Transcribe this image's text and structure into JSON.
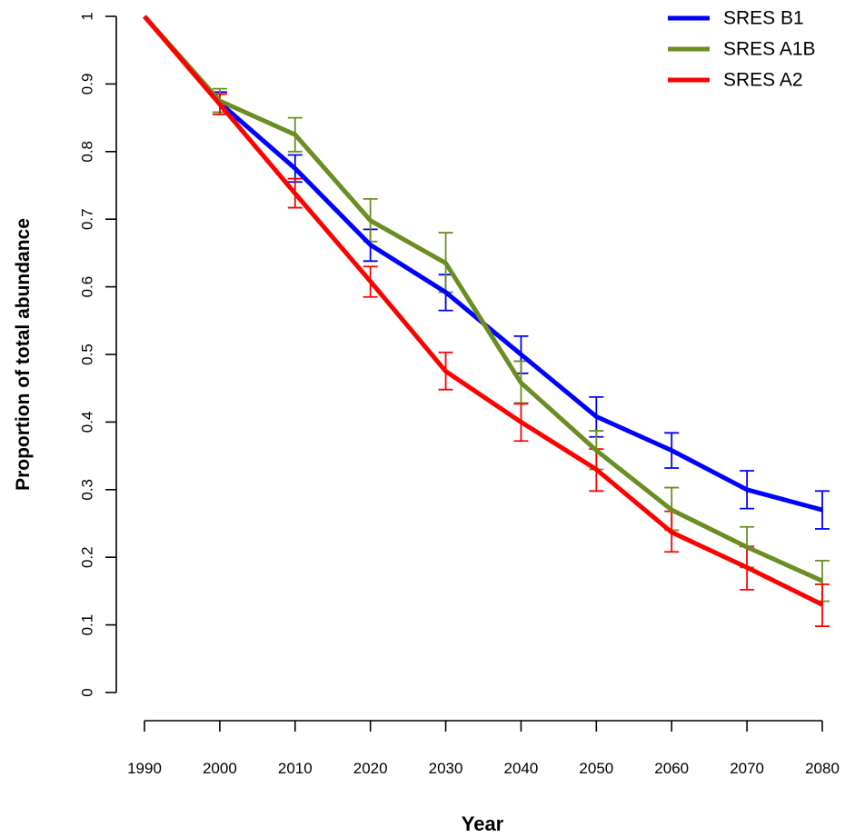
{
  "chart_data": {
    "type": "line",
    "title": "",
    "xlabel": "Year",
    "ylabel": "Proportion of total abundance",
    "x": [
      1990,
      2000,
      2010,
      2020,
      2030,
      2040,
      2050,
      2060,
      2070,
      2080
    ],
    "x_tick_labels": [
      "1990",
      "2000",
      "2010",
      "2020",
      "2030",
      "2040",
      "2050",
      "2060",
      "2070",
      "2080"
    ],
    "y_tick_labels": [
      "0",
      "0.1",
      "0.2",
      "0.3",
      "0.4",
      "0.5",
      "0.6",
      "0.7",
      "0.8",
      "0.9",
      "1"
    ],
    "y_ticks": [
      0,
      0.1,
      0.2,
      0.3,
      0.4,
      0.5,
      0.6,
      0.7,
      0.8,
      0.9,
      1.0
    ],
    "ylim": [
      0,
      1
    ],
    "xlim": [
      1990,
      2080
    ],
    "grid": false,
    "legend_position": "top-right",
    "series": [
      {
        "name": "SRES B1",
        "color": "#0000ff",
        "values": [
          1.0,
          0.872,
          0.775,
          0.662,
          0.592,
          0.5,
          0.408,
          0.358,
          0.3,
          0.27
        ],
        "err_low": [
          null,
          0.858,
          0.755,
          0.638,
          0.565,
          0.472,
          0.378,
          0.332,
          0.272,
          0.242
        ],
        "err_high": [
          null,
          0.888,
          0.795,
          0.685,
          0.618,
          0.527,
          0.437,
          0.384,
          0.328,
          0.298
        ]
      },
      {
        "name": "SRES A1B",
        "color": "#6b8e23",
        "values": [
          1.0,
          0.875,
          0.825,
          0.698,
          0.635,
          0.458,
          0.358,
          0.27,
          0.215,
          0.165
        ],
        "err_low": [
          null,
          0.858,
          0.8,
          0.667,
          0.592,
          0.428,
          0.33,
          0.24,
          0.185,
          0.135
        ],
        "err_high": [
          null,
          0.893,
          0.85,
          0.73,
          0.68,
          0.49,
          0.387,
          0.303,
          0.245,
          0.195
        ]
      },
      {
        "name": "SRES A2",
        "color": "#ff0000",
        "values": [
          1.0,
          0.87,
          0.738,
          0.608,
          0.475,
          0.4,
          0.33,
          0.237,
          0.185,
          0.13
        ],
        "err_low": [
          null,
          0.855,
          0.717,
          0.585,
          0.448,
          0.372,
          0.298,
          0.208,
          0.152,
          0.098
        ],
        "err_high": [
          null,
          0.885,
          0.76,
          0.63,
          0.503,
          0.427,
          0.36,
          0.268,
          0.216,
          0.16
        ]
      }
    ]
  }
}
